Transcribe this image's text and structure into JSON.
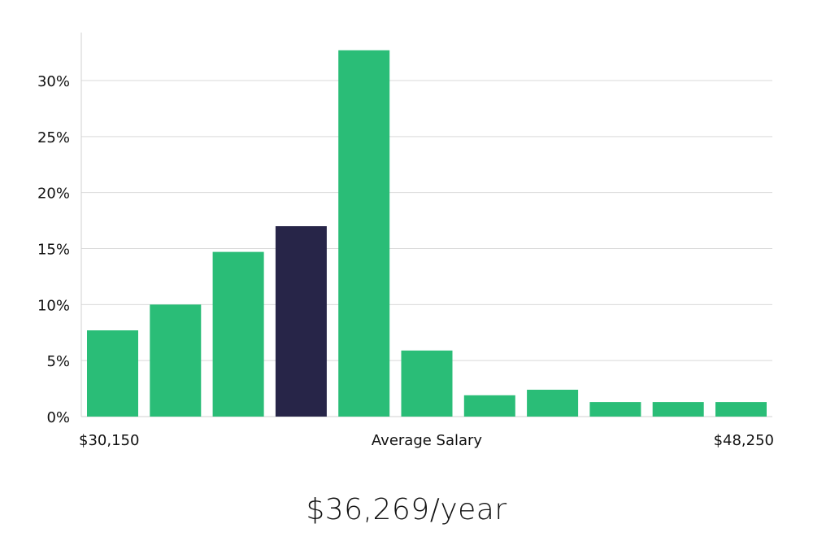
{
  "chart_data": {
    "type": "bar",
    "title": "",
    "xlabel": "Average Salary",
    "ylabel": "",
    "x_range_labels": {
      "min": "$30,150",
      "center": "Average Salary",
      "max": "$48,250"
    },
    "ylim": [
      0,
      33
    ],
    "yticks": [
      0,
      5,
      10,
      15,
      20,
      25,
      30
    ],
    "ytick_suffix": "%",
    "values": [
      7.7,
      10.0,
      14.7,
      17.0,
      32.7,
      5.9,
      1.9,
      2.4,
      1.3,
      1.3,
      1.3
    ],
    "highlight_index": 3,
    "grid": true
  },
  "colors": {
    "bar": "#2abd77",
    "highlight": "#272548",
    "grid": "#d9d9d9",
    "axis": "#d0d0d0"
  },
  "summary": {
    "salary_text": "$36,269/year"
  }
}
